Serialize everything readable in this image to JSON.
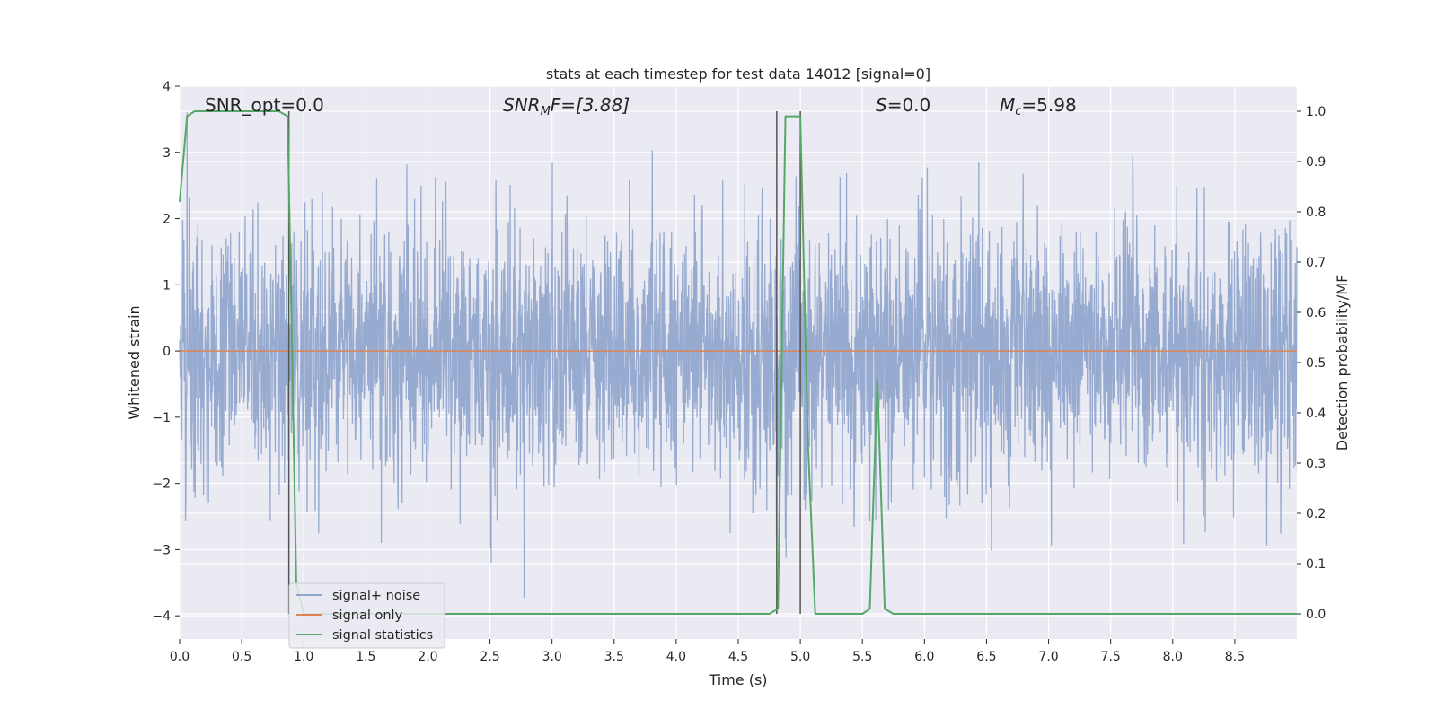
{
  "chart_data": {
    "type": "line",
    "title": "stats at each timestep for test data 14012 [signal=0]",
    "xlabel": "Time (s)",
    "ylabel": "Whitened strain",
    "ylabel_right": "Detection probability/MF",
    "xlim": [
      0.0,
      9.0
    ],
    "ylim": [
      -4.35,
      4.0
    ],
    "ylim_right": [
      -0.05,
      1.05
    ],
    "xticks": [
      "0.0",
      "0.5",
      "1.0",
      "1.5",
      "2.0",
      "2.5",
      "3.0",
      "3.5",
      "4.0",
      "4.5",
      "5.0",
      "5.5",
      "6.0",
      "6.5",
      "7.0",
      "7.5",
      "8.0",
      "8.5"
    ],
    "yticks": [
      "4",
      "3",
      "2",
      "1",
      "0",
      "−1",
      "−2",
      "−3",
      "−4"
    ],
    "yticks_right": [
      "1.0",
      "0.9",
      "0.8",
      "0.7",
      "0.6",
      "0.5",
      "0.4",
      "0.3",
      "0.2",
      "0.1",
      "0.0"
    ],
    "grid": true,
    "legend_position": "lower-left",
    "annotations": {
      "snr_opt": "SNR_opt=0.0",
      "snr_mf_base": "SNR",
      "snr_mf_sub": "M",
      "snr_mf_rest": "F=[3.88]",
      "s_italic": "S",
      "s_rest": "=0.0",
      "mc_base": "M",
      "mc_sub": "c",
      "mc_rest": "=5.98"
    },
    "series": [
      {
        "name": "signal+ noise",
        "color": "#92a6cd",
        "note": "whitened strain noise, approx. Gaussian, range about -4 to 3.6",
        "envelope": {
          "typical_low": -1.8,
          "typical_high": 1.8,
          "min": -4.0,
          "max": 3.6
        }
      },
      {
        "name": "signal only",
        "color": "#dd8452",
        "x": [
          0.0,
          9.0
        ],
        "y": [
          0.0,
          0.0
        ]
      },
      {
        "name": "signal statistics",
        "color": "#55a868",
        "axis": "right",
        "x": [
          0.0,
          0.06,
          0.12,
          0.2,
          0.4,
          0.6,
          0.8,
          0.87,
          0.9,
          0.94,
          1.0,
          4.5,
          4.75,
          4.82,
          4.88,
          4.95,
          5.0,
          5.06,
          5.12,
          5.5,
          5.56,
          5.62,
          5.68,
          5.75,
          9.0
        ],
        "y": [
          0.82,
          0.99,
          1.0,
          1.0,
          1.0,
          1.0,
          1.0,
          0.99,
          0.6,
          0.06,
          0.0,
          0.0,
          0.0,
          0.01,
          0.99,
          0.99,
          0.99,
          0.35,
          0.0,
          0.0,
          0.01,
          0.47,
          0.01,
          0.0,
          0.0
        ]
      },
      {
        "name": "event markers",
        "color": "#555555",
        "axis": "right",
        "vlines": [
          {
            "x": 0.88,
            "y0": 0.0,
            "y1": 1.0
          },
          {
            "x": 4.81,
            "y0": 0.0,
            "y1": 1.0
          },
          {
            "x": 5.0,
            "y0": 0.0,
            "y1": 1.0
          }
        ]
      }
    ]
  }
}
